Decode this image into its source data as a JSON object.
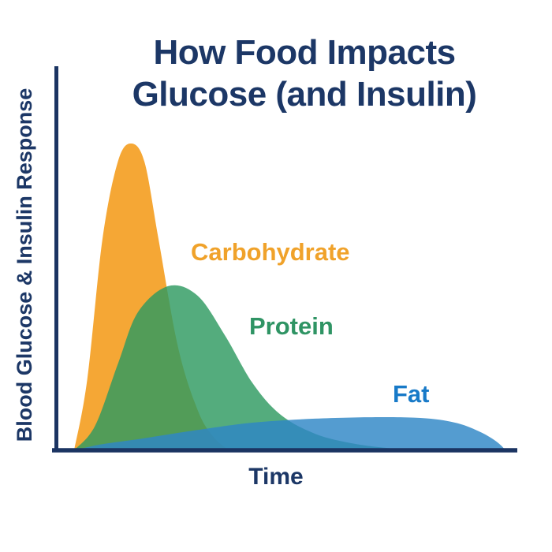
{
  "title": {
    "line1": "How Food Impacts",
    "line2": "Glucose (and Insulin)",
    "color": "#1C3766"
  },
  "axes": {
    "y_label": "Blood Glucose & Insulin Response",
    "x_label": "Time",
    "color": "#1B3462"
  },
  "chart_data": {
    "type": "area",
    "title": "How Food Impacts Glucose (and Insulin)",
    "xlabel": "Time",
    "ylabel": "Blood Glucose & Insulin Response",
    "x_range_normalized": [
      0,
      1
    ],
    "y_range_normalized": [
      0,
      1
    ],
    "grid": false,
    "legend_position": "inline-labels",
    "series": [
      {
        "name": "Carbohydrate",
        "fill": "#F5A735",
        "opacity": 1.0,
        "label_color": "#F0A22A",
        "points": [
          [
            0.0,
            0.0
          ],
          [
            0.03,
            0.23
          ],
          [
            0.065,
            0.69
          ],
          [
            0.1,
            0.94
          ],
          [
            0.13,
            1.0
          ],
          [
            0.161,
            0.94
          ],
          [
            0.193,
            0.69
          ],
          [
            0.238,
            0.335
          ],
          [
            0.283,
            0.13
          ],
          [
            0.318,
            0.045
          ],
          [
            0.354,
            0.0
          ]
        ]
      },
      {
        "name": "Protein",
        "fill": "#2E9A60",
        "opacity": 0.82,
        "label_color": "#2F9464",
        "points": [
          [
            0.0,
            0.0
          ],
          [
            0.048,
            0.08
          ],
          [
            0.101,
            0.285
          ],
          [
            0.146,
            0.45
          ],
          [
            0.215,
            0.535
          ],
          [
            0.282,
            0.505
          ],
          [
            0.345,
            0.375
          ],
          [
            0.408,
            0.22
          ],
          [
            0.471,
            0.118
          ],
          [
            0.551,
            0.054
          ],
          [
            0.642,
            0.021
          ],
          [
            0.732,
            0.005
          ],
          [
            0.77,
            0.0
          ]
        ]
      },
      {
        "name": "Fat",
        "fill": "#2E86C6",
        "opacity": 0.82,
        "label_color": "#187AC8",
        "points": [
          [
            0.0,
            0.0
          ],
          [
            0.065,
            0.02
          ],
          [
            0.155,
            0.038
          ],
          [
            0.282,
            0.066
          ],
          [
            0.408,
            0.09
          ],
          [
            0.551,
            0.103
          ],
          [
            0.698,
            0.108
          ],
          [
            0.806,
            0.104
          ],
          [
            0.878,
            0.088
          ],
          [
            0.932,
            0.058
          ],
          [
            0.968,
            0.027
          ],
          [
            0.988,
            0.0
          ]
        ]
      }
    ]
  }
}
